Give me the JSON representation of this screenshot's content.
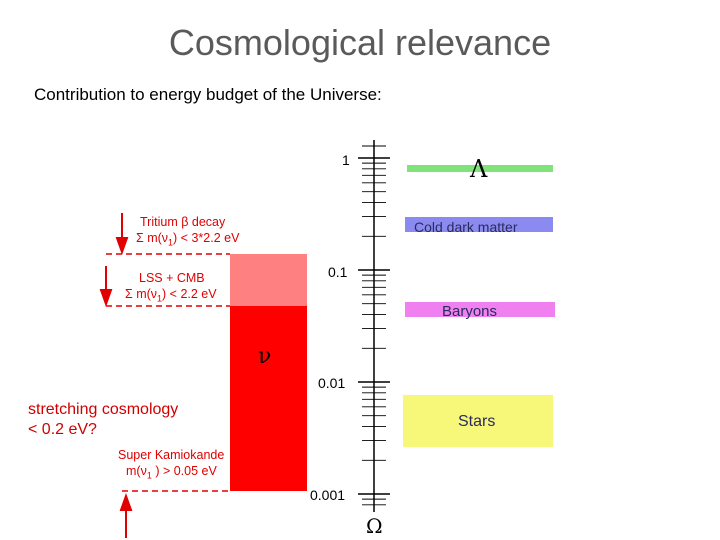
{
  "title": "Cosmological relevance",
  "subtitle": "Contribution to energy budget of the Universe:",
  "axis": {
    "symbol": "Ω",
    "tick_labels": [
      "1",
      "0.1",
      "0.01",
      "0.001"
    ]
  },
  "bands": [
    {
      "label": "Λ",
      "color": "#7fe37a"
    },
    {
      "label": "Cold dark matter",
      "color": "#8a8af0"
    },
    {
      "label": "Baryons",
      "color": "#f080f0"
    },
    {
      "label": "Stars",
      "color": "#f7f77a"
    }
  ],
  "neutrino": {
    "symbol": "ν",
    "bar_color": "#ff0000",
    "upper_bar_color": "#ff8080"
  },
  "annotations": {
    "tritium_line1": "Tritium  β decay",
    "tritium_line2": "Σ m(ν",
    "tritium_sub": "1",
    "tritium_line2_end": ") < 3*2.2 eV",
    "lss_line1": "LSS + CMB",
    "lss_line2": "Σ m(ν",
    "lss_sub": "1",
    "lss_line2_end": ") < 2.2 eV",
    "sk_line1": "Super Kamiokande",
    "sk_line2": "m(ν",
    "sk_sub": "1",
    "sk_line2_end": " ) > 0.05 eV"
  },
  "note": {
    "line1": "stretching cosmology",
    "line2": "< 0.2 eV?"
  }
}
